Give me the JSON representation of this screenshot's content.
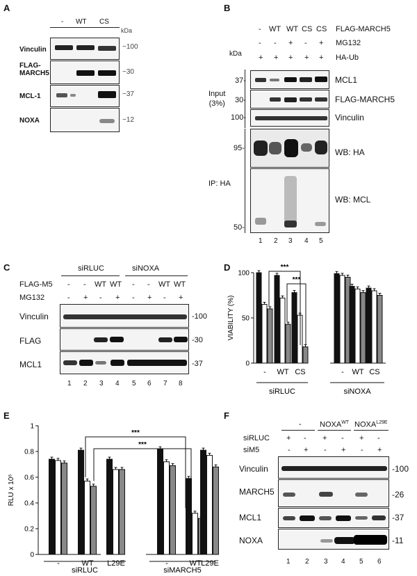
{
  "panels": {
    "A": {
      "letter": "A",
      "lanes": [
        "-",
        "WT",
        "CS"
      ],
      "kda_label": "kDa",
      "blots": [
        {
          "name": "Vinculin",
          "mw": "−100"
        },
        {
          "name": "FLAG-\nMARCH5",
          "mw": "−30"
        },
        {
          "name": "MCL-1",
          "mw": "−37"
        },
        {
          "name": "NOXA",
          "mw": "−12"
        }
      ]
    },
    "B": {
      "letter": "B",
      "conditions": [
        {
          "label": "FLAG-MARCH5",
          "values": [
            "-",
            "WT",
            "WT",
            "CS",
            "CS"
          ]
        },
        {
          "label": "MG132",
          "values": [
            "-",
            "-",
            "+",
            "-",
            "+"
          ]
        },
        {
          "label": "HA-Ub",
          "values": [
            "+",
            "+",
            "+",
            "+",
            "+"
          ]
        }
      ],
      "kda_label": "kDa",
      "input_label": "Input\n(3%)",
      "ip_label": "IP: HA",
      "blots": [
        {
          "name": "MCL1",
          "mw": "37-"
        },
        {
          "name": "FLAG-MARCH5",
          "mw": "30-"
        },
        {
          "name": "Vinculin",
          "mw": "100-"
        },
        {
          "name": "WB: HA",
          "mw": "95-"
        },
        {
          "name": "WB: MCL",
          "mw": "50-"
        }
      ],
      "lane_numbers": [
        "1",
        "2",
        "3",
        "4",
        "5"
      ]
    },
    "C": {
      "letter": "C",
      "groups": [
        "siRLUC",
        "siNOXA"
      ],
      "conditions": [
        {
          "label": "FLAG-M5",
          "values": [
            "-",
            "-",
            "WT",
            "WT",
            "-",
            "-",
            "WT",
            "WT"
          ]
        },
        {
          "label": "MG132",
          "values": [
            "-",
            "+",
            "-",
            "+",
            "-",
            "+",
            "-",
            "+"
          ]
        }
      ],
      "blots": [
        {
          "name": "Vinculin",
          "mw": "-100"
        },
        {
          "name": "FLAG",
          "mw": "-30"
        },
        {
          "name": "MCL1",
          "mw": "-37"
        }
      ],
      "lane_numbers": [
        "1",
        "2",
        "3",
        "4",
        "5",
        "6",
        "7",
        "8"
      ]
    },
    "D": {
      "letter": "D",
      "significance": [
        "***",
        "***"
      ]
    },
    "E": {
      "letter": "E",
      "significance": [
        "***",
        "***"
      ]
    },
    "F": {
      "letter": "F",
      "group_headers": [
        "-",
        "NOXA",
        "NOXA"
      ],
      "group_superscripts": [
        "",
        "WT",
        "L29E"
      ],
      "conditions": [
        {
          "label": "siRLUC",
          "values": [
            "+",
            "-",
            "+",
            "-",
            "+",
            "-"
          ]
        },
        {
          "label": "siM5",
          "values": [
            "-",
            "+",
            "-",
            "+",
            "-",
            "+"
          ]
        }
      ],
      "blots": [
        {
          "name": "Vinculin",
          "mw": "-100"
        },
        {
          "name": "MARCH5",
          "mw": "-26"
        },
        {
          "name": "MCL1",
          "mw": "-37"
        },
        {
          "name": "NOXA",
          "mw": "-11"
        }
      ],
      "lane_numbers": [
        "1",
        "2",
        "3",
        "4",
        "5",
        "6"
      ]
    }
  },
  "chart_data": [
    {
      "panel": "D",
      "type": "bar",
      "ylabel": "VIABILITY (%)",
      "ylim": [
        0,
        100
      ],
      "yticks": [
        0,
        50,
        100
      ],
      "groups": [
        "siRLUC",
        "siNOXA"
      ],
      "categories": [
        "-",
        "WT",
        "CS",
        "-",
        "WT",
        "CS"
      ],
      "series": [
        {
          "color": "#111111",
          "values": [
            100,
            97,
            78,
            99,
            85,
            83
          ]
        },
        {
          "color": "#ffffff",
          "values": [
            65,
            72,
            53,
            97,
            82,
            80
          ]
        },
        {
          "color": "#888888",
          "values": [
            60,
            43,
            18,
            95,
            78,
            75
          ]
        }
      ]
    },
    {
      "panel": "E",
      "type": "bar",
      "ylabel": "RLU x 10⁶",
      "ylim": [
        0,
        1.0
      ],
      "yticks": [
        0,
        0.2,
        0.4,
        0.6,
        0.8,
        1.0
      ],
      "ytick_labels": [
        "0",
        "0.2",
        "0.4",
        "0.6",
        "0.8",
        "1"
      ],
      "groups": [
        "siRLUC",
        "siMARCH5"
      ],
      "categories": [
        "-",
        "WT",
        "L29E",
        "-",
        "WT",
        "L29E"
      ],
      "series": [
        {
          "color": "#111111",
          "values": [
            0.74,
            0.81,
            0.74,
            0.82,
            0.59,
            0.81
          ]
        },
        {
          "color": "#ffffff",
          "values": [
            0.73,
            0.57,
            0.66,
            0.72,
            0.32,
            0.77
          ]
        },
        {
          "color": "#888888",
          "values": [
            0.71,
            0.53,
            0.66,
            0.69,
            0.28,
            0.68
          ]
        }
      ]
    }
  ]
}
